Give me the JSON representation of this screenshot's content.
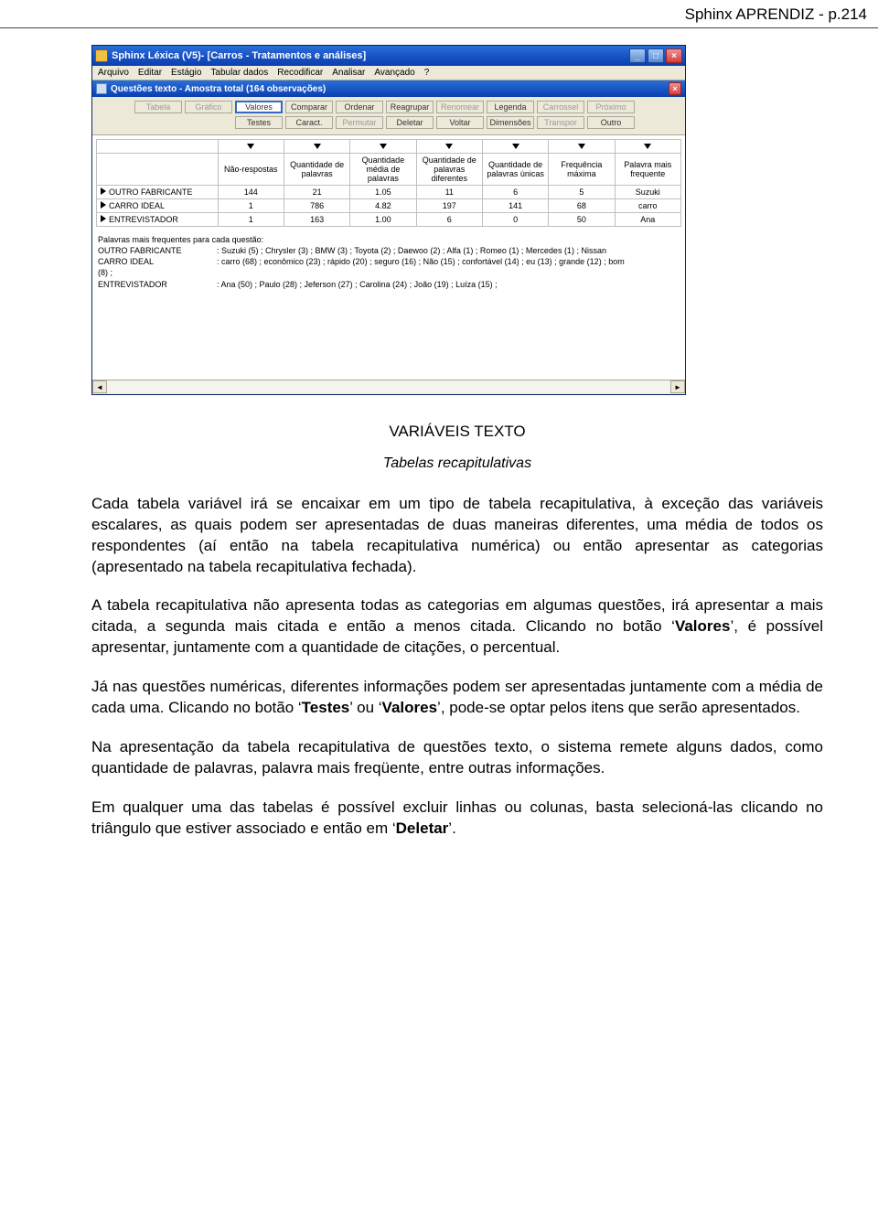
{
  "page_header": "Sphinx APRENDIZ - p.214",
  "window": {
    "title": "Sphinx Léxica (V5)- [Carros - Tratamentos e análises]",
    "menu": [
      "Arquivo",
      "Editar",
      "Estágio",
      "Tabular dados",
      "Recodificar",
      "Analisar",
      "Avançado",
      "?"
    ],
    "subtitle": "Questões texto - Amostra total (164 observações)",
    "toolbar_row1": [
      {
        "label": "Tabela",
        "state": "disabled"
      },
      {
        "label": "Gráfico",
        "state": "disabled"
      },
      {
        "label": "Valores",
        "state": "active"
      },
      {
        "label": "Comparar",
        "state": "normal"
      },
      {
        "label": "Ordenar",
        "state": "normal"
      },
      {
        "label": "Reagrupar",
        "state": "normal"
      },
      {
        "label": "Renomear",
        "state": "disabled"
      },
      {
        "label": "Legenda",
        "state": "normal"
      },
      {
        "label": "Carrossel",
        "state": "disabled"
      },
      {
        "label": "Próximo",
        "state": "disabled"
      }
    ],
    "toolbar_row2": [
      {
        "label": "Testes",
        "state": "normal"
      },
      {
        "label": "Caract.",
        "state": "normal"
      },
      {
        "label": "Permutar",
        "state": "disabled"
      },
      {
        "label": "Deletar",
        "state": "normal"
      },
      {
        "label": "Voltar",
        "state": "normal"
      },
      {
        "label": "Dimensões",
        "state": "normal"
      },
      {
        "label": "Transpor",
        "state": "disabled"
      },
      {
        "label": "Outro",
        "state": "normal"
      }
    ],
    "table": {
      "columns": [
        "Não-respostas",
        "Quantidade de palavras",
        "Quantidade média de palavras",
        "Quantidade de palavras diferentes",
        "Quantidade de palavras únicas",
        "Frequência máxima",
        "Palavra mais frequente"
      ],
      "rows": [
        {
          "label": "OUTRO FABRICANTE",
          "cells": [
            "144",
            "21",
            "1.05",
            "11",
            "6",
            "5",
            "Suzuki"
          ]
        },
        {
          "label": "CARRO IDEAL",
          "cells": [
            "1",
            "786",
            "4.82",
            "197",
            "141",
            "68",
            "carro"
          ]
        },
        {
          "label": "ENTREVISTADOR",
          "cells": [
            "1",
            "163",
            "1.00",
            "6",
            "0",
            "50",
            "Ana"
          ]
        }
      ]
    },
    "freq": {
      "title": "Palavras mais frequentes para cada questão:",
      "rows": [
        {
          "label": "OUTRO FABRICANTE",
          "data": ": Suzuki (5) ; Chrysler (3) ; BMW (3) ; Toyota (2) ; Daewoo (2) ; Alfa (1) ; Romeo (1) ; Mercedes (1) ; Nissan"
        },
        {
          "label": "CARRO IDEAL",
          "data": ": carro (68) ; econômico (23) ; rápido (20) ; seguro (16) ; Não (15) ; confortável (14) ; eu (13) ; grande (12) ; bom"
        },
        {
          "label": "(8) ;",
          "data": ""
        },
        {
          "label": "ENTREVISTADOR",
          "data": ": Ana (50) ; Paulo (28) ; Jeferson (27) ; Carolina (24) ; João (19) ; Luíza (15) ;"
        }
      ]
    }
  },
  "doc": {
    "heading": "VARIÁVEIS TEXTO",
    "subheading": "Tabelas recapitulativas",
    "p1": "Cada tabela variável irá se encaixar em um tipo de tabela recapitulativa, à exceção das variáveis escalares, as quais podem ser apresentadas de duas maneiras diferentes, uma média de todos os respondentes (aí então na tabela recapitulativa numérica) ou então apresentar as categorias (apresentado na tabela recapitulativa fechada).",
    "p2a": "A tabela recapitulativa não apresenta todas as categorias em algumas questões, irá apresentar a mais citada, a segunda mais citada e então a menos citada. Clicando no botão ‘",
    "p2b": "Valores",
    "p2c": "’, é possível apresentar, juntamente com a quantidade de citações, o percentual.",
    "p3a": "Já nas questões numéricas, diferentes informações podem ser apresentadas juntamente com a média de cada uma. Clicando no botão ‘",
    "p3b": "Testes",
    "p3c": "’ ou ‘",
    "p3d": "Valores",
    "p3e": "’, pode-se optar pelos itens que serão apresentados.",
    "p4": "Na apresentação da tabela recapitulativa de questões texto, o sistema remete alguns dados, como quantidade de palavras, palavra mais freqüente, entre outras informações.",
    "p5a": "Em qualquer uma das tabelas é possível excluir linhas ou colunas, basta selecioná-las clicando no triângulo que estiver associado e então em ‘",
    "p5b": "Deletar",
    "p5c": "’."
  }
}
